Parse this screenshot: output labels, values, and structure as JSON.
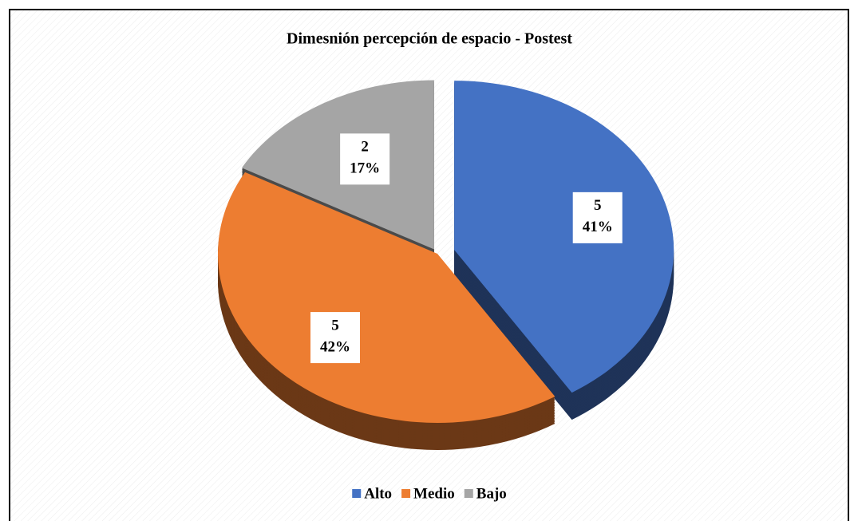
{
  "chart_data": {
    "type": "pie",
    "title": "Dimesnión percepción de espacio - Postest",
    "categories": [
      "Alto",
      "Medio",
      "Bajo"
    ],
    "values": [
      41,
      42,
      17
    ],
    "value_labels": [
      "41%",
      "42%",
      "17%"
    ],
    "counts": [
      5,
      5,
      2
    ],
    "colors": [
      "#4472c4",
      "#ed7d31",
      "#a5a5a5"
    ],
    "legend": "bottom"
  }
}
